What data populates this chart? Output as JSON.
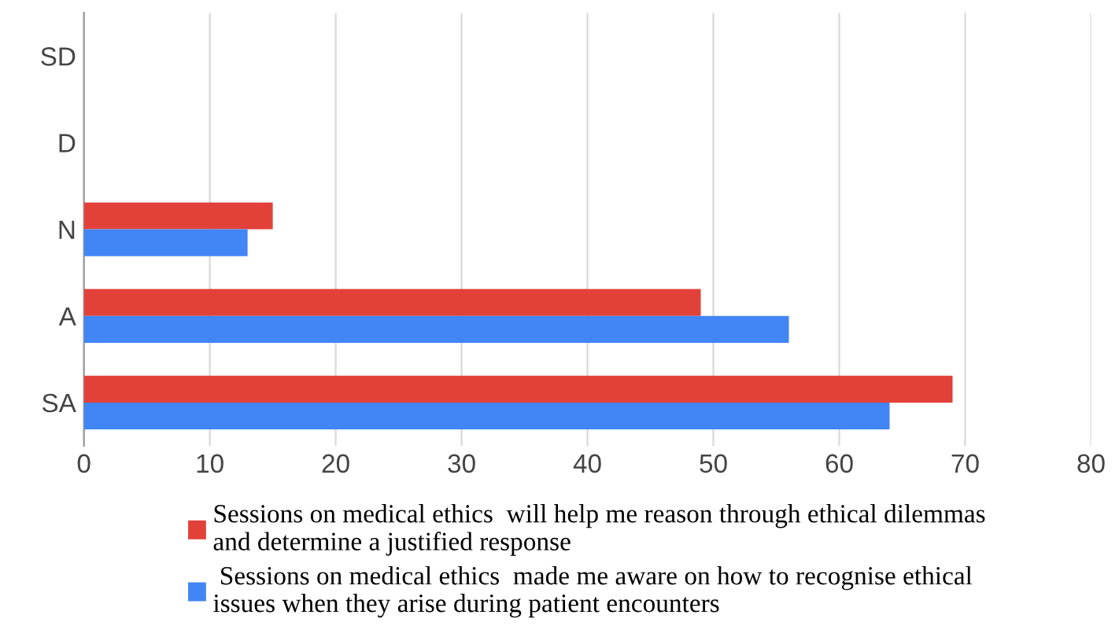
{
  "chart_data": {
    "type": "bar",
    "orientation": "horizontal",
    "categories": [
      "SD",
      "D",
      "N",
      "A",
      "SA"
    ],
    "series": [
      {
        "name": "Sessions on medical ethics  will help me reason through ethical dilemmas\nand determine a justified response",
        "color": "#e2413a",
        "values": [
          0,
          0,
          15,
          49,
          69
        ]
      },
      {
        "name": " Sessions on medical ethics  made me aware on how to recognise ethical\nissues when they arise during patient encounters",
        "color": "#4285f4",
        "values": [
          0,
          0,
          13,
          56,
          64
        ]
      }
    ],
    "xlim": [
      0,
      80
    ],
    "xticks": [
      0,
      10,
      20,
      30,
      40,
      50,
      60,
      70,
      80
    ],
    "grid": "x",
    "legend": "bottom"
  }
}
